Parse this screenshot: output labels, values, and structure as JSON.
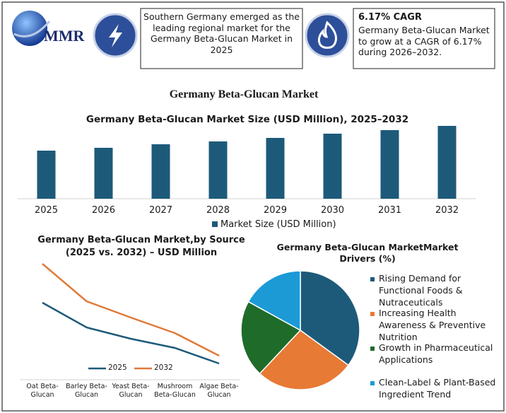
{
  "header": {
    "logo": "MMR",
    "box1": "Southern Germany emerged as the leading regional market for the Germany Beta-Glucan Market in 2025",
    "box2": {
      "title": "6.17% CAGR",
      "text": "Germany Beta-Glucan Market to grow at a CAGR of 6.17% during 2026–2032."
    },
    "main_title": "Germany Beta-Glucan Market"
  },
  "chart_data": [
    {
      "type": "bar",
      "title": "Germany Beta-Glucan Market Size (USD Million), 2025–2032",
      "categories": [
        "2025",
        "2026",
        "2027",
        "2028",
        "2029",
        "2030",
        "2031",
        "2032"
      ],
      "series": [
        {
          "name": "Market Size (USD Million)",
          "color": "#1d5a7a",
          "values": [
            68,
            72,
            77,
            81,
            86,
            92,
            97,
            103
          ]
        }
      ]
    },
    {
      "type": "line",
      "title": [
        "Germany Beta-Glucan Market,by Source",
        "(2025 vs. 2032) – USD Million"
      ],
      "categories": [
        "Oat Beta-Glucan",
        "Barley Beta-Glucan",
        "Yeast Beta-Glucan",
        "Mushroom Beta-Glucan",
        "Algae Beta-Glucan"
      ],
      "series": [
        {
          "name": "2025",
          "color": "#1d5a7a",
          "values": [
            102,
            67,
            51,
            38,
            16
          ]
        },
        {
          "name": "2032",
          "color": "#e07a38",
          "values": [
            157,
            104,
            81,
            59,
            27
          ]
        }
      ]
    },
    {
      "type": "pie",
      "title": "Germany Beta-Glucan MarketMarket Drivers (%)",
      "categories": [
        "Rising Demand for Functional Foods & Nutraceuticals",
        "Increasing Health Awareness & Preventive Nutrition",
        "Growth in Pharmaceutical Applications",
        "Clean-Label & Plant-Based Ingredient Trend"
      ],
      "values": [
        35,
        27,
        21,
        17
      ],
      "colors": [
        "#1d5a7a",
        "#e77a34",
        "#1f6b2a",
        "#1b9ad6"
      ]
    }
  ]
}
